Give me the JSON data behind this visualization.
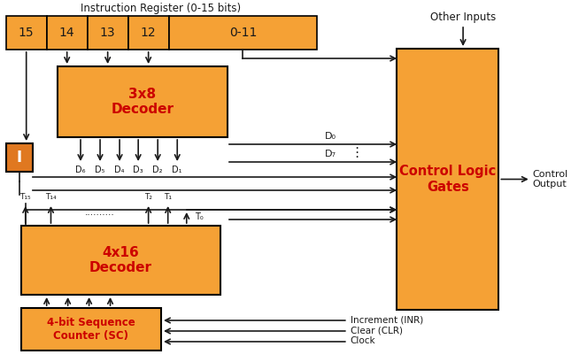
{
  "bg_color": "#ffffff",
  "orange": "#F5A135",
  "orange_i": "#E07820",
  "red": "#CC0000",
  "dark": "#1a1a1a",
  "figsize": [
    6.45,
    4.09
  ],
  "dpi": 100,
  "ir_label": "Instruction Register (0-15 bits)",
  "ir_bits": [
    "15",
    "14",
    "13",
    "12",
    "0-11"
  ],
  "dec3_label": "3x8\nDecoder",
  "dec4_label": "4x16\nDecoder",
  "sc_label": "4-bit Sequence\nCounter (SC)",
  "clg_label": "Control Logic\nGates",
  "i_label": "I",
  "d_labels": [
    "D₆",
    "D₅",
    "D₄",
    "D₃",
    "D₂",
    "D₁"
  ],
  "d0_label": "D₀",
  "d7_label": "D₇",
  "t15_label": "T₁₅",
  "t14_label": "T₁₄",
  "t2_label": "T₂",
  "t1_label": "T₁",
  "t0_label": "T₀",
  "other_inputs": "Other Inputs",
  "ctrl_out": "Control\nOutput",
  "incr_label": "Increment (INR)",
  "clear_label": "Clear (CLR)",
  "clock_label": "Clock"
}
